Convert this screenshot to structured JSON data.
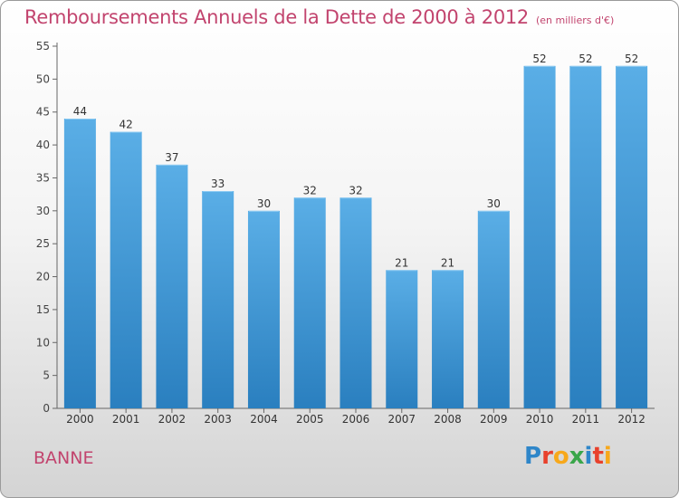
{
  "chart_data": {
    "type": "bar",
    "title": "Remboursements Annuels de la Dette de 2000 à 2012",
    "unit_label": "(en milliers d'€)",
    "categories": [
      "2000",
      "2001",
      "2002",
      "2003",
      "2004",
      "2005",
      "2006",
      "2007",
      "2008",
      "2009",
      "2010",
      "2011",
      "2012"
    ],
    "values": [
      44,
      42,
      37,
      33,
      30,
      32,
      32,
      21,
      21,
      30,
      52,
      52,
      52
    ],
    "ylim": [
      0,
      55
    ],
    "yticks": [
      0,
      5,
      10,
      15,
      20,
      25,
      30,
      35,
      40,
      45,
      50,
      55
    ],
    "grid": false,
    "bar_color_top": "#5aaee6",
    "bar_color_bottom": "#2a7fbf"
  },
  "footer": {
    "city": "BANNE",
    "logo_text": "Proxiti",
    "logo_colors": [
      "#2e86c9",
      "#e8412c",
      "#f7a81b",
      "#3aa64a",
      "#2e86c9",
      "#e8412c",
      "#f7a81b"
    ]
  },
  "colors": {
    "title": "#c2446e",
    "axis": "#555555"
  }
}
